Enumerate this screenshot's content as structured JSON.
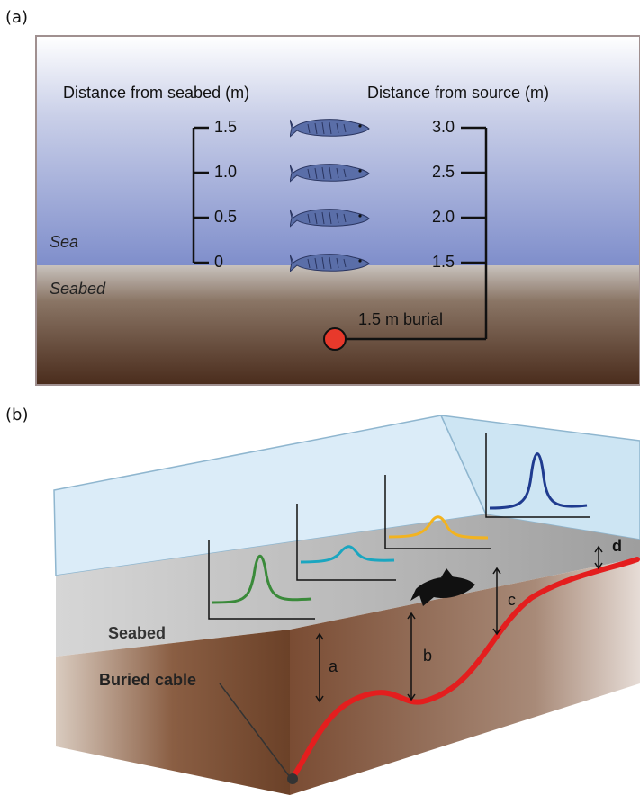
{
  "panel_a": {
    "label": "(a)",
    "left_axis": {
      "title": "Distance from seabed (m)",
      "ticks": [
        "1.5",
        "1.0",
        "0.5",
        "0"
      ]
    },
    "right_axis": {
      "title": "Distance from source (m)",
      "ticks": [
        "3.0",
        "2.5",
        "2.0",
        "1.5"
      ]
    },
    "sea_label": "Sea",
    "seabed_label": "Seabed",
    "burial_label": "1.5 m burial"
  },
  "panel_b": {
    "label": "(b)",
    "seabed_label": "Seabed",
    "cable_label": "Buried cable",
    "distances": [
      "a",
      "b",
      "c",
      "d"
    ]
  }
}
